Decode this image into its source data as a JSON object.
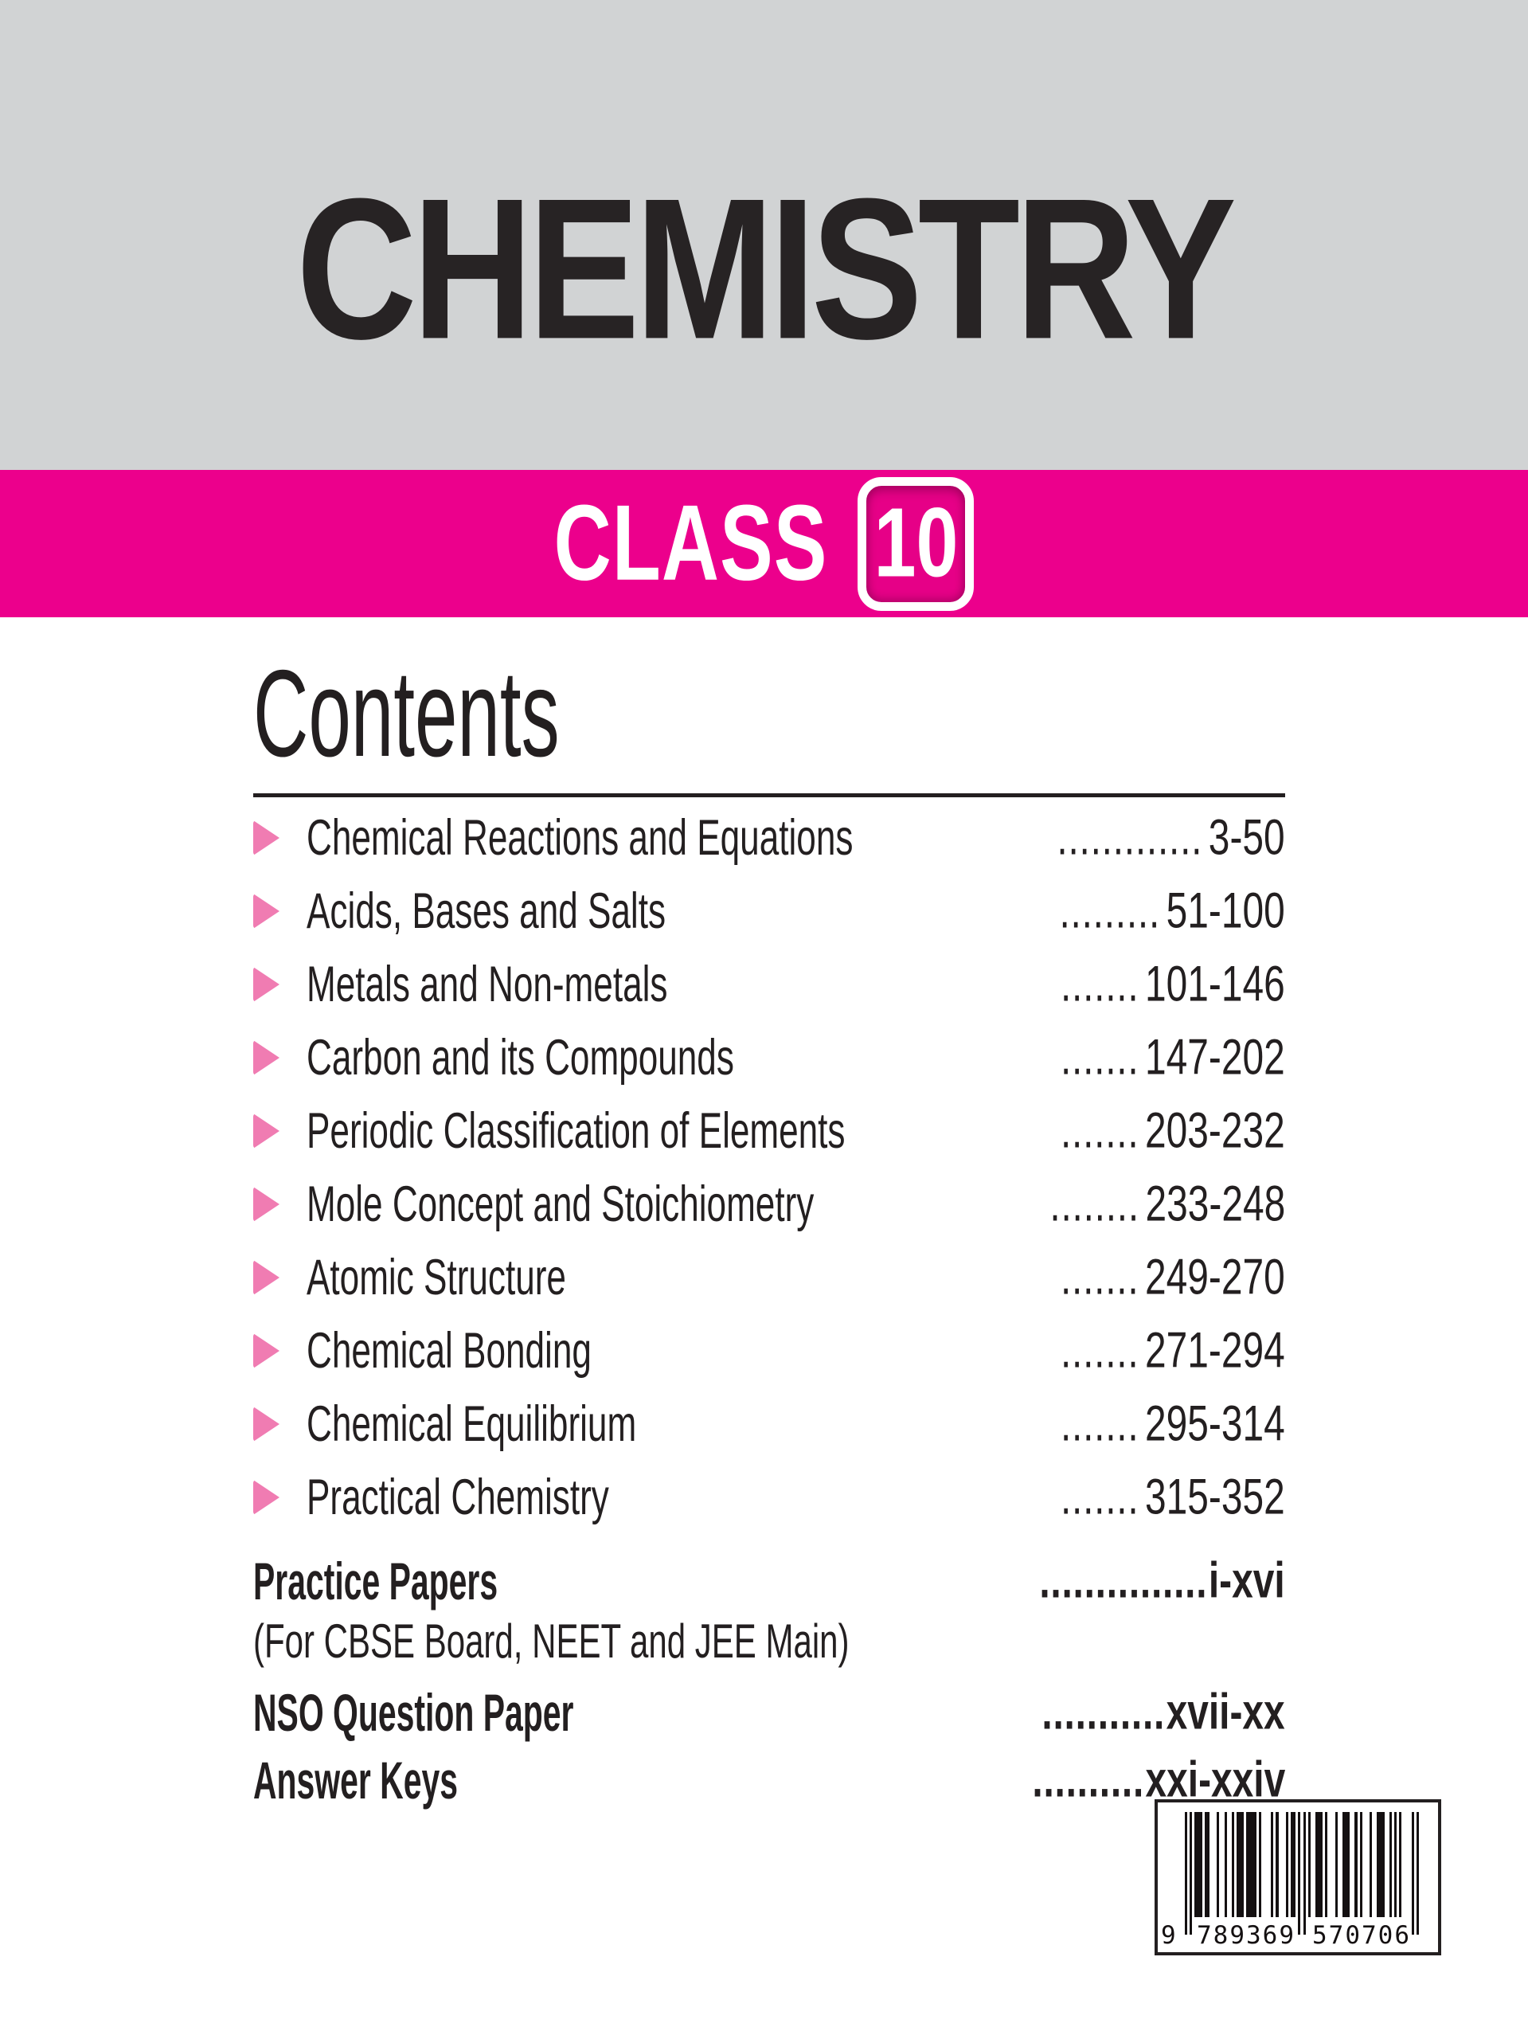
{
  "title": "CHEMISTRY",
  "banner": {
    "class_label": "CLASS",
    "class_number": "10"
  },
  "contents": {
    "heading": "Contents",
    "items": [
      {
        "title": "Chemical Reactions and Equations",
        "leader": ".............",
        "pages": "3-50"
      },
      {
        "title": "Acids, Bases and Salts",
        "leader": ".........",
        "pages": "51-100"
      },
      {
        "title": "Metals and Non-metals",
        "leader": ".......",
        "pages": "101-146"
      },
      {
        "title": "Carbon and its Compounds",
        "leader": ".......",
        "pages": "147-202"
      },
      {
        "title": "Periodic Classification of Elements",
        "leader": ".......",
        "pages": "203-232"
      },
      {
        "title": "Mole Concept and Stoichiometry",
        "leader": "........",
        "pages": "233-248"
      },
      {
        "title": "Atomic Structure",
        "leader": ".......",
        "pages": "249-270"
      },
      {
        "title": "Chemical Bonding",
        "leader": ".......",
        "pages": "271-294"
      },
      {
        "title": "Chemical Equilibrium",
        "leader": ".......",
        "pages": "295-314"
      },
      {
        "title": "Practical Chemistry",
        "leader": ".......",
        "pages": "315-352"
      }
    ],
    "extras": [
      {
        "title": "Practice Papers",
        "subtitle": "(For CBSE Board, NEET and JEE Main)",
        "leader": "...............",
        "pages": "i-xvi"
      },
      {
        "title": "NSO Question Paper",
        "leader": "...........",
        "pages": "xvii-xx"
      },
      {
        "title": "Answer Keys",
        "leader": "..........",
        "pages": "xxi-xxiv"
      }
    ]
  },
  "barcode": {
    "number_lead": "9",
    "number_left": "789369",
    "number_right": "570706",
    "full_number": "9 789369 570706",
    "modules": "10101110110001001001011101111010000101000101101010100111010001001110010100010011100101010000101"
  },
  "colors": {
    "header_gray": "#d1d3d4",
    "magenta": "#ec008c",
    "bullet_pink": "#f07cb2",
    "text": "#231f20"
  }
}
